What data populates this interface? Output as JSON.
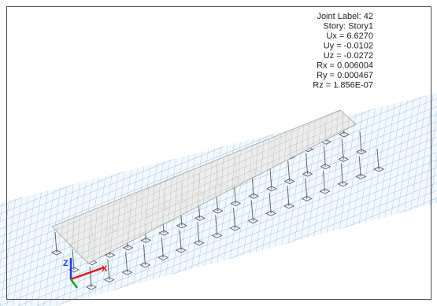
{
  "joint_info": {
    "lines": [
      "Joint Label: 42",
      "Story: Story1",
      "Ux =  6.6270",
      "Uy = -0.0102",
      "Uz = -0.0272",
      "Rx =  0.006004",
      "Ry =  0.000467",
      "Rz =  1.856E-07"
    ]
  },
  "axes": {
    "x": "X",
    "z": "Z"
  }
}
